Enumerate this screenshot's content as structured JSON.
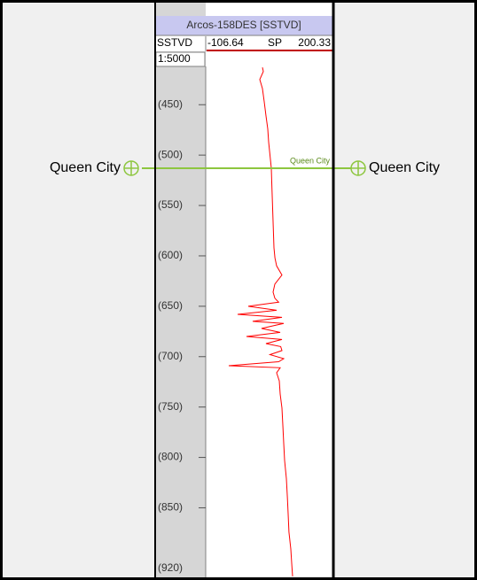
{
  "chart_data": {
    "type": "line",
    "title": "Arcos-158DES [SSTVD]",
    "depth_label": "SSTVD",
    "scale_label": "1:5000",
    "x": [
      413,
      417,
      425,
      434,
      447,
      461,
      474,
      487,
      500,
      513,
      527,
      540,
      553,
      566,
      579,
      592,
      602,
      610,
      619,
      628,
      636,
      642,
      646,
      650,
      654,
      658,
      661,
      665,
      667,
      672,
      676,
      680,
      683,
      687,
      690,
      694,
      698,
      702,
      705,
      709,
      711,
      716,
      724,
      737,
      751,
      768,
      786,
      803,
      821,
      839,
      856,
      874,
      891,
      905,
      918
    ],
    "series": [
      {
        "name": "SP",
        "color": "#ff0000",
        "values": [
          30.7,
          32.9,
          24.3,
          30.7,
          35.0,
          39.3,
          43.6,
          45.8,
          49.0,
          52.2,
          53.3,
          54.4,
          55.5,
          56.5,
          57.6,
          58.7,
          61.0,
          65.1,
          78.0,
          60.8,
          56.5,
          60.8,
          70.0,
          -3.6,
          65.1,
          -29.4,
          78.0,
          7.1,
          82.3,
          28.6,
          73.7,
          -7.9,
          78.0,
          39.3,
          75.0,
          78.0,
          49.0,
          82.3,
          70.0,
          -50.8,
          73.7,
          65.1,
          71.5,
          73.7,
          78.0,
          80.1,
          82.3,
          84.4,
          88.7,
          91.0,
          93.0,
          95.0,
          99.4,
          101.5,
          103.7
        ]
      }
    ],
    "ylim": [
      -106.64,
      200.33
    ],
    "xlim": [
      412,
      919
    ],
    "xticks": [
      {
        "value": 450,
        "label": "(450)"
      },
      {
        "value": 500,
        "label": "(500)"
      },
      {
        "value": 550,
        "label": "(550)"
      },
      {
        "value": 600,
        "label": "(600)"
      },
      {
        "value": 650,
        "label": "(650)"
      },
      {
        "value": 700,
        "label": "(700)"
      },
      {
        "value": 750,
        "label": "(750)"
      },
      {
        "value": 800,
        "label": "(800)"
      },
      {
        "value": 850,
        "label": "(850)"
      },
      {
        "value": 920,
        "label": "(920)"
      }
    ],
    "markers": [
      {
        "name": "Queen City",
        "depth": 513,
        "color": "#8dc63f"
      }
    ]
  }
}
